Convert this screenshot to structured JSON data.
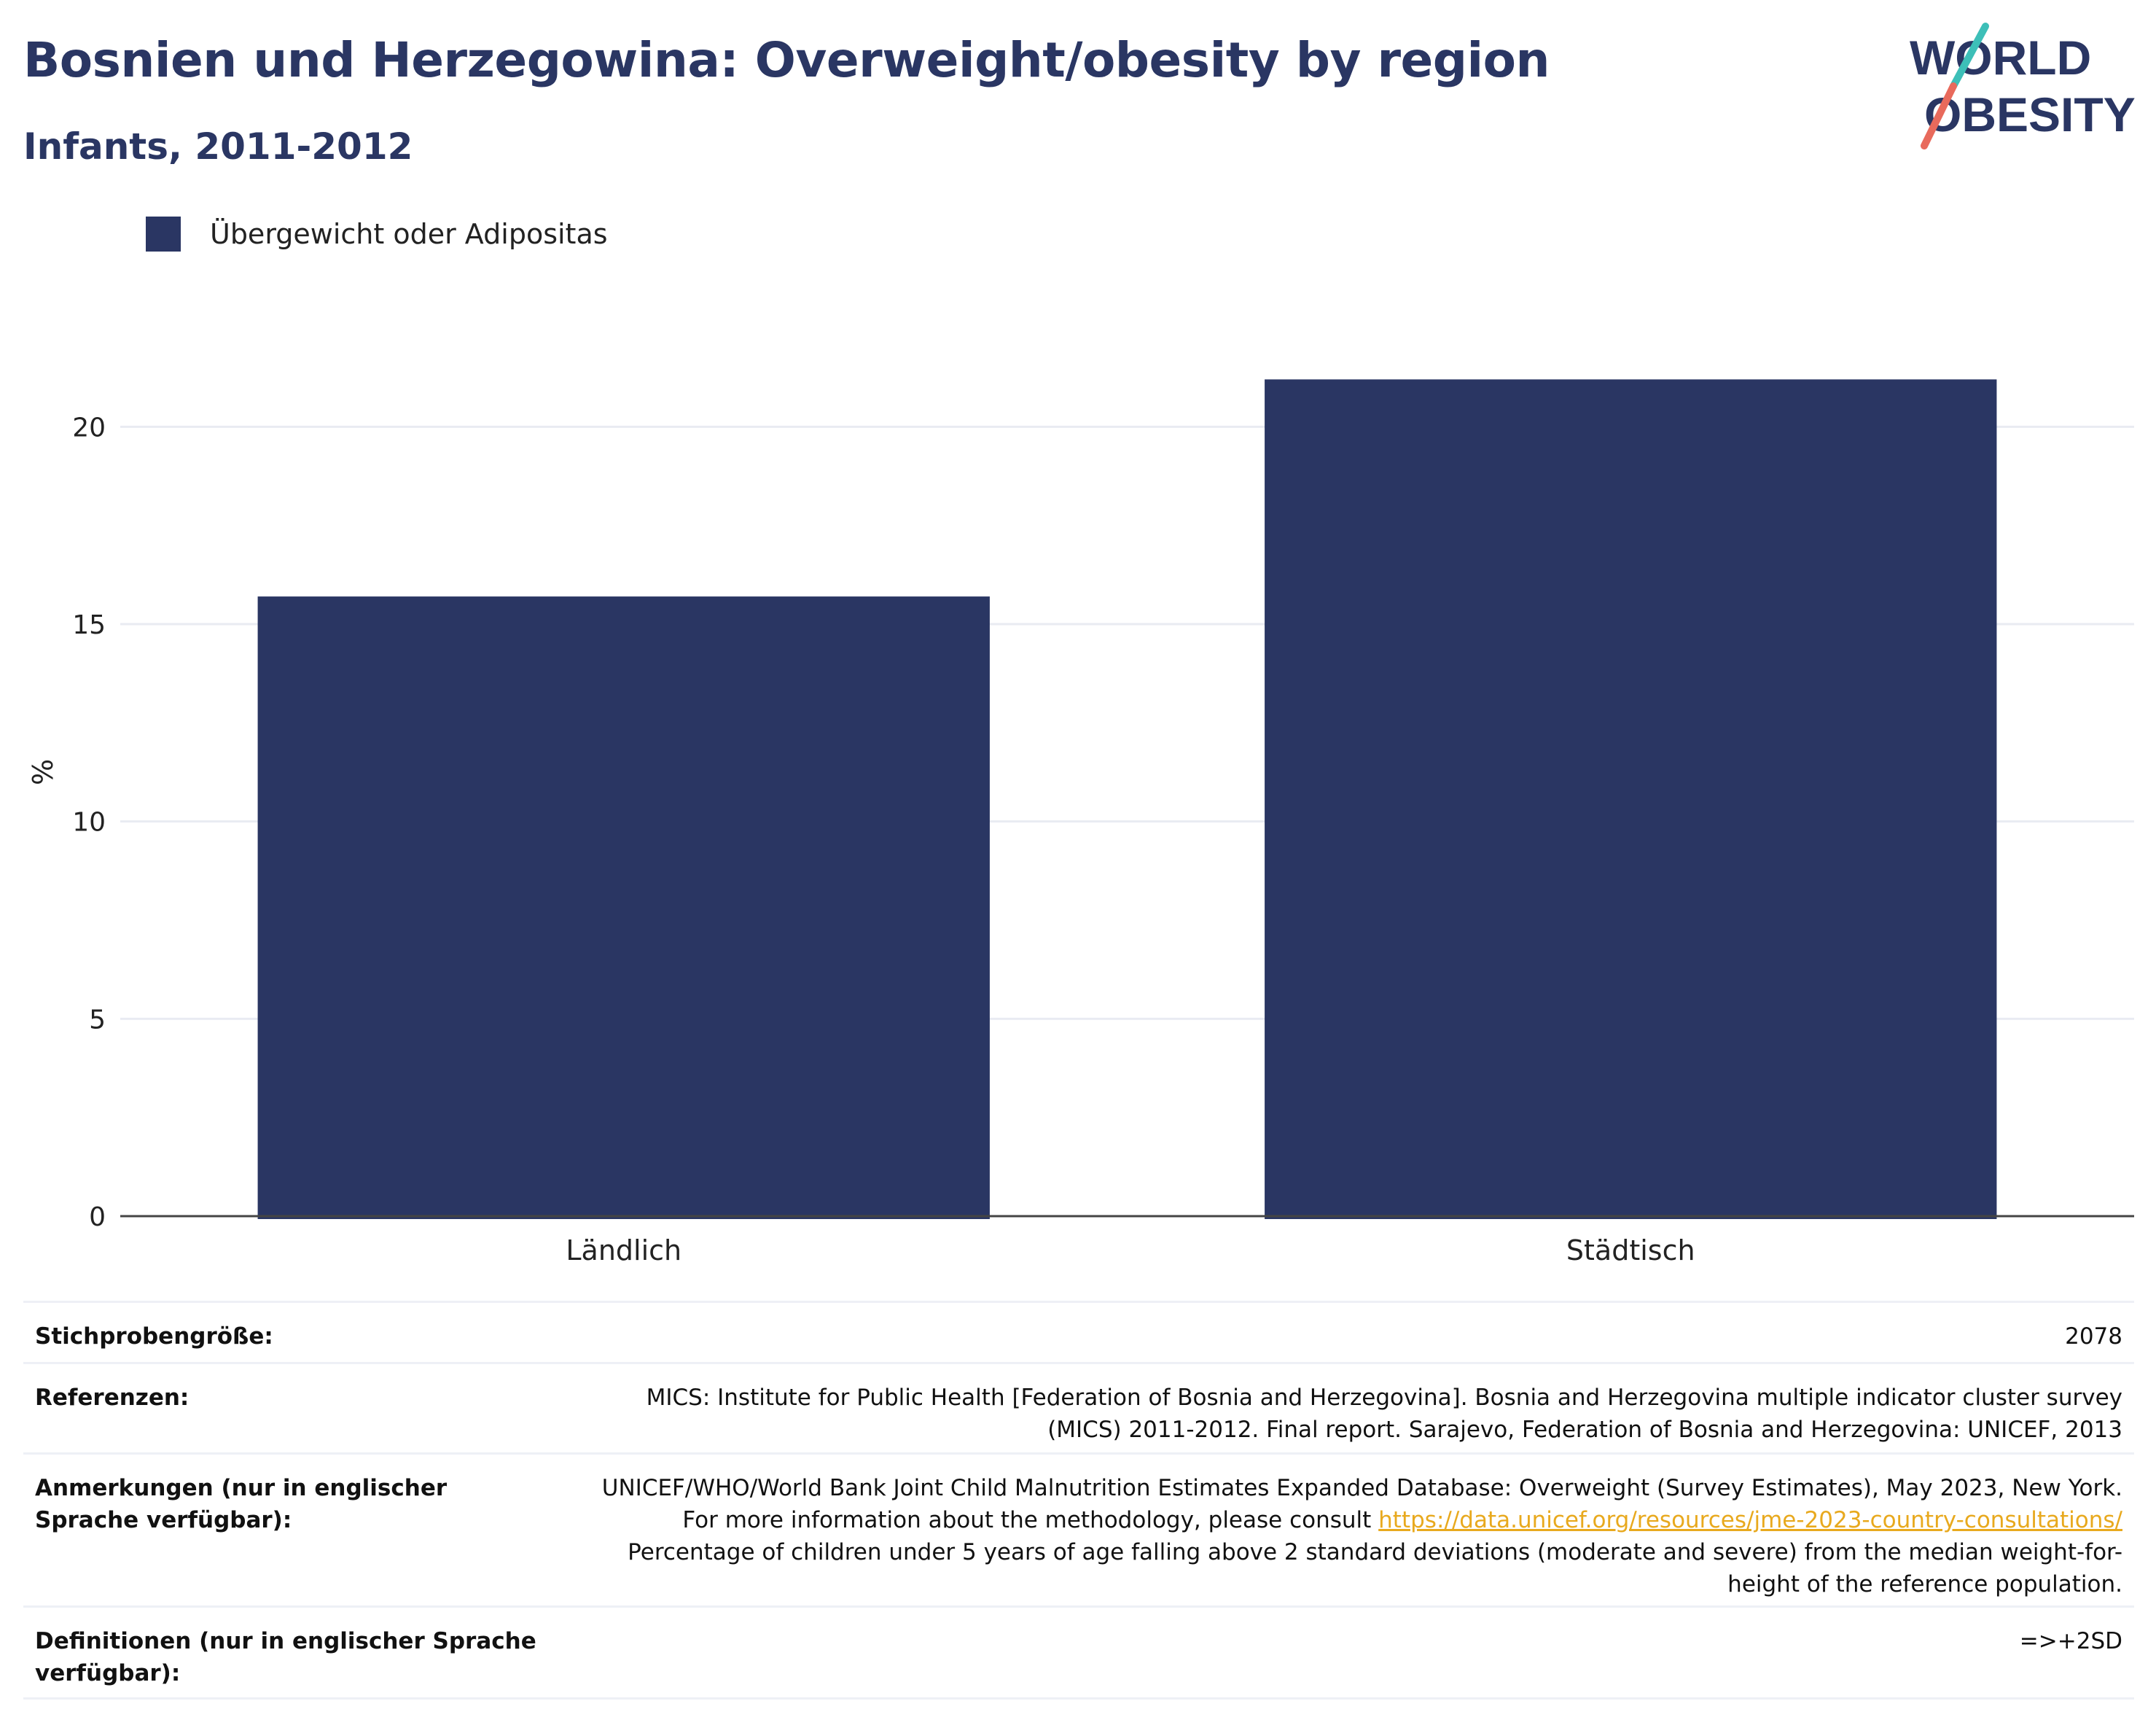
{
  "title": "Bosnien und Herzegowina: Overweight/obesity by region",
  "subtitle": "Infants, 2011-2012",
  "logo": {
    "line1": "WORLD",
    "line2": "OBESITY",
    "colors": {
      "text": "#2a3663",
      "teal": "#3dbfb8",
      "coral": "#e86a5c"
    }
  },
  "legend": {
    "label": "Übergewicht oder Adipositas",
    "color": "#2a3663"
  },
  "chart_data": {
    "type": "bar",
    "categories": [
      "Ländlich",
      "Städtisch"
    ],
    "series": [
      {
        "name": "Übergewicht oder Adipositas",
        "values": [
          15.7,
          21.2
        ],
        "color": "#2a3663"
      }
    ],
    "ylabel": "%",
    "xlabel": "",
    "ylim": [
      0,
      22.5
    ],
    "yticks": [
      0,
      5,
      10,
      15,
      20
    ],
    "grid": true
  },
  "meta": {
    "sample_label": "Stichprobengröße:",
    "sample_value": "2078",
    "references_label": "Referenzen:",
    "references_value": "MICS: Institute for Public Health [Federation of Bosnia and Herzegovina]. Bosnia and Herzegovina multiple indicator cluster survey (MICS) 2011-2012. Final report. Sarajevo, Federation of Bosnia and Herzegovina: UNICEF, 2013",
    "notes_label": "Anmerkungen (nur in englischer Sprache verfügbar):",
    "notes_before": "UNICEF/WHO/World Bank Joint Child Malnutrition Estimates Expanded Database: Overweight (Survey Estimates), May 2023, New York. For more information about the methodology, please consult ",
    "notes_link": "https://data.unicef.org/resources/jme-2023-country-consultations/",
    "notes_after": " Percentage of children under 5 years of age falling above 2 standard deviations (moderate and severe) from the median weight-for-height of the reference population.",
    "definitions_label": "Definitionen (nur in englischer Sprache verfügbar):",
    "definitions_value": "=>+2SD"
  }
}
